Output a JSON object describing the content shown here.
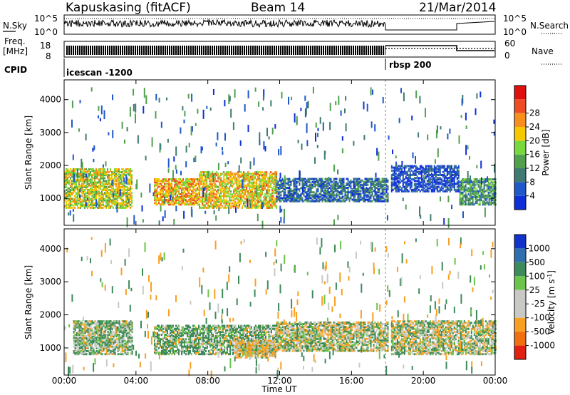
{
  "header": {
    "station": "Kapuskasing (fitACF)",
    "beam": "Beam 14",
    "date": "21/Mar/2014"
  },
  "top_panels": {
    "nsky_label": "N.Sky",
    "nsky_ticks": [
      "10^5",
      "10^0"
    ],
    "nsearch_label": "N.Search",
    "nsearch_ticks": [
      "10^5",
      "10^0"
    ],
    "freq_label_1": "Freq.",
    "freq_label_2": "[MHz]",
    "freq_ticks": [
      "18",
      "8"
    ],
    "nave_label": "Nave",
    "nave_ticks": [
      "60",
      "0"
    ],
    "cpid_label": "CPID",
    "cpid_segments": [
      {
        "name": "icescan -1200",
        "start_h": 0,
        "end_h": 18
      },
      {
        "name": "rbsp 200",
        "start_h": 18,
        "end_h": 24
      }
    ]
  },
  "chart_data": [
    {
      "type": "heatmap",
      "title": "",
      "xlabel": "Time UT",
      "ylabel": "Slant Range [km]",
      "xlim": [
        0,
        24
      ],
      "ylim": [
        180,
        4600
      ],
      "x_ticks": [
        "00:00",
        "04:00",
        "08:00",
        "12:00",
        "16:00",
        "20:00",
        "00:00"
      ],
      "y_ticks": [
        "1000",
        "2000",
        "3000",
        "4000"
      ],
      "colorbar": {
        "label": "Power [dB]",
        "ticks": [
          "4",
          "8",
          "12",
          "16",
          "20",
          "24",
          "28"
        ],
        "colors": [
          "#0f2fd8",
          "#1f58c8",
          "#3f7a72",
          "#52a04e",
          "#78d83e",
          "#f5c800",
          "#f78f1c",
          "#ef4c24",
          "#e01010"
        ]
      },
      "regions": [
        {
          "t0": 0.0,
          "t1": 3.8,
          "r0": 700,
          "r1": 1900,
          "level": 20
        },
        {
          "t0": 5.0,
          "t1": 7.5,
          "r0": 800,
          "r1": 1600,
          "level": 24
        },
        {
          "t0": 7.5,
          "t1": 11.8,
          "r0": 700,
          "r1": 1800,
          "level": 22
        },
        {
          "t0": 11.8,
          "t1": 18.0,
          "r0": 900,
          "r1": 1600,
          "level": 8
        },
        {
          "t0": 18.2,
          "t1": 22.0,
          "r0": 1200,
          "r1": 2000,
          "level": 4
        },
        {
          "t0": 22.0,
          "t1": 24.0,
          "r0": 800,
          "r1": 1600,
          "level": 12
        }
      ]
    },
    {
      "type": "heatmap",
      "title": "",
      "xlabel": "Time UT",
      "ylabel": "Slant Range [km]",
      "xlim": [
        0,
        24
      ],
      "ylim": [
        180,
        4600
      ],
      "x_ticks": [
        "00:00",
        "04:00",
        "08:00",
        "12:00",
        "16:00",
        "20:00",
        "00:00"
      ],
      "y_ticks": [
        "1000",
        "2000",
        "3000",
        "4000"
      ],
      "colorbar": {
        "label": "Velocity [m s^-1]",
        "ticks": [
          "1000",
          "500",
          "100",
          "25",
          "-25",
          "-100",
          "-500",
          "-1000"
        ],
        "colors": [
          "#1133cc",
          "#2f6fb0",
          "#3d8a5a",
          "#6cc44a",
          "#c8c8c4",
          "#c8c8c4",
          "#f7a022",
          "#f07010",
          "#e02010"
        ]
      },
      "regions": [
        {
          "t0": 0.5,
          "t1": 3.8,
          "r0": 800,
          "r1": 1800,
          "level": 100
        },
        {
          "t0": 5.0,
          "t1": 11.8,
          "r0": 800,
          "r1": 1700,
          "level": 100
        },
        {
          "t0": 9.5,
          "t1": 11.8,
          "r0": 700,
          "r1": 1200,
          "level": -100
        },
        {
          "t0": 11.8,
          "t1": 18.0,
          "r0": 900,
          "r1": 1800,
          "level": 0
        },
        {
          "t0": 18.2,
          "t1": 24.0,
          "r0": 800,
          "r1": 1800,
          "level": 0
        }
      ]
    }
  ]
}
